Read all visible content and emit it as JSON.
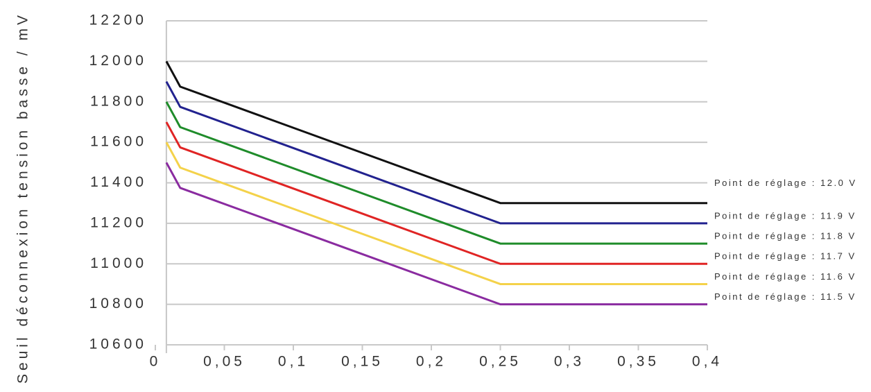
{
  "chart_data": {
    "type": "line",
    "y_label": "Seuil déconnexion tension basse / mV",
    "x": [
      0.008,
      0.018,
      0.25,
      0.4
    ],
    "series": [
      {
        "name": "Point de réglage : 12.0 V",
        "color": "#111111",
        "values": [
          12000,
          11875,
          11300,
          11300
        ]
      },
      {
        "name": "Point de réglage : 11.9 V",
        "color": "#22228f",
        "values": [
          11900,
          11775,
          11200,
          11200
        ]
      },
      {
        "name": "Point de réglage : 11.8 V",
        "color": "#1f8c2a",
        "values": [
          11800,
          11675,
          11100,
          11100
        ]
      },
      {
        "name": "Point de réglage : 11.7 V",
        "color": "#e02424",
        "values": [
          11700,
          11575,
          11000,
          11000
        ]
      },
      {
        "name": "Point de réglage : 11.6 V",
        "color": "#f4d24a",
        "values": [
          11600,
          11475,
          10900,
          10900
        ]
      },
      {
        "name": "Point de réglage : 11.5 V",
        "color": "#8a2ba0",
        "values": [
          11500,
          11375,
          10800,
          10800
        ]
      }
    ],
    "xlim": [
      0,
      0.4
    ],
    "xticks": [
      0,
      {
        "value": 0.05,
        "label": "0,05"
      },
      {
        "value": 0.1,
        "label": "0,1"
      },
      {
        "value": 0.15,
        "label": "0,15"
      },
      {
        "value": 0.2,
        "label": "0,2"
      },
      {
        "value": 0.25,
        "label": "0,25"
      },
      {
        "value": 0.3,
        "label": "0,3"
      },
      {
        "value": 0.35,
        "label": "0,35"
      },
      {
        "value": 0.4,
        "label": "0,4"
      }
    ],
    "ylim": [
      10600,
      12200
    ],
    "yticks": [
      10600,
      10800,
      11000,
      11200,
      11400,
      11600,
      11800,
      12000,
      12200
    ],
    "grid": true
  }
}
